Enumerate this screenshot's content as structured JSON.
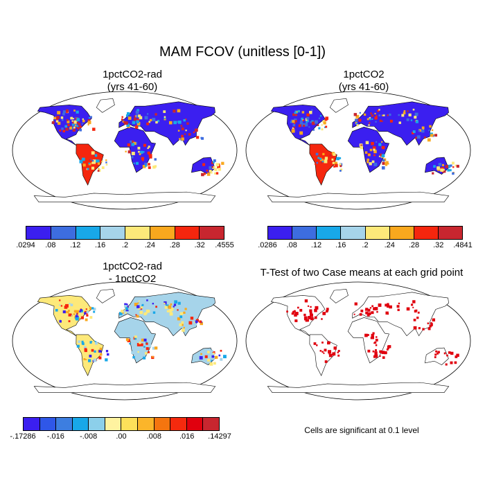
{
  "main_title": "MAM FCOV (unitless [0-1])",
  "panels": [
    {
      "title_line1": "1pctCO2-rad",
      "title_line2": "(yrs 41-60)"
    },
    {
      "title_line1": "1pctCO2",
      "title_line2": "(yrs 41-60)"
    },
    {
      "title_line1": "1pctCO2-rad",
      "title_line2": "- 1pctCO2"
    },
    {
      "title_line1": "T-Test of two Case means at each grid point",
      "title_line2": ""
    }
  ],
  "colorbars": {
    "top_left": {
      "colors": [
        "#3b1ff0",
        "#3d6de0",
        "#18a8e8",
        "#a6d4ea",
        "#fde97a",
        "#f9a81e",
        "#f5260e",
        "#c8262f"
      ],
      "labels": [
        ".0294",
        ".08",
        ".12",
        ".16",
        ".2",
        ".24",
        ".28",
        ".32",
        ".4555"
      ]
    },
    "top_right": {
      "colors": [
        "#3b1ff0",
        "#3d6de0",
        "#18a8e8",
        "#a6d4ea",
        "#fde97a",
        "#f9a81e",
        "#f5260e",
        "#c8262f"
      ],
      "labels": [
        ".0286",
        ".08",
        ".12",
        ".16",
        ".2",
        ".24",
        ".28",
        ".32",
        ".4841"
      ]
    },
    "bottom_left": {
      "colors": [
        "#3b1ff0",
        "#2f57e8",
        "#3d7ee0",
        "#18a8e8",
        "#8ccfea",
        "#fff3a0",
        "#fde05a",
        "#fbb52a",
        "#f5750f",
        "#f52a0e",
        "#e0000e",
        "#c8262f"
      ],
      "labels": [
        "-.17286",
        "-.016",
        "-.008",
        ".00",
        ".008",
        ".016",
        ".14297"
      ]
    }
  },
  "significance_note": "Cells are significant at 0.1 level",
  "significance_color": "#e0000e"
}
